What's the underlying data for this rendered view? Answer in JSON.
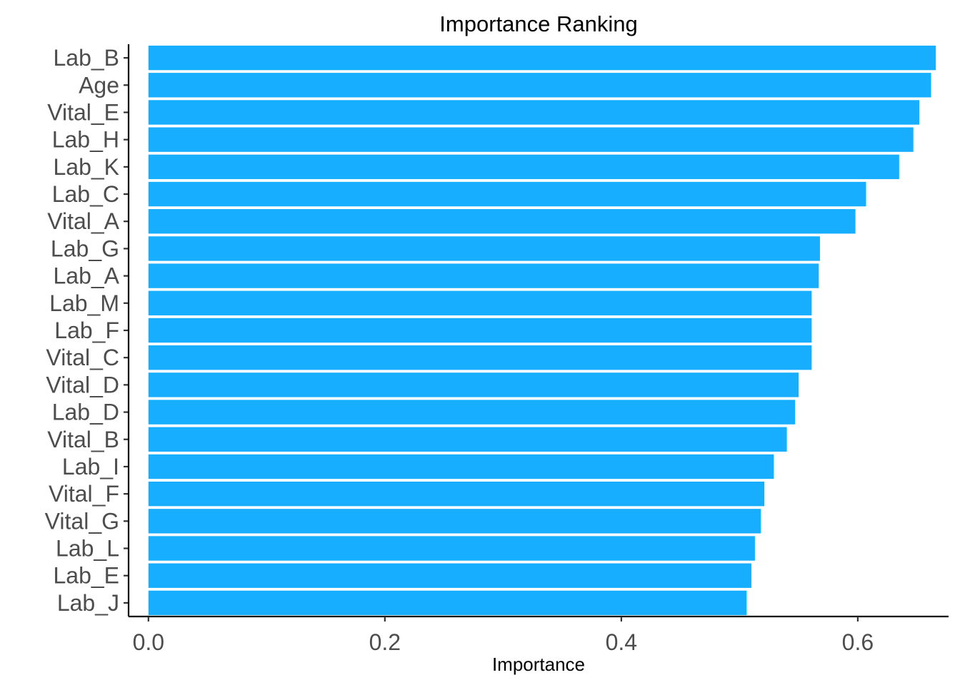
{
  "chart_data": {
    "type": "bar",
    "orientation": "horizontal",
    "title": "Importance Ranking",
    "xlabel": "Importance",
    "ylabel": "",
    "xlim": [
      -0.0168,
      0.6768
    ],
    "x_ticks": [
      {
        "value": 0.0,
        "label": "0.0"
      },
      {
        "value": 0.2,
        "label": "0.2"
      },
      {
        "value": 0.4,
        "label": "0.4"
      },
      {
        "value": 0.6,
        "label": "0.6"
      }
    ],
    "categories": [
      "Lab_B",
      "Age",
      "Vital_E",
      "Lab_H",
      "Lab_K",
      "Lab_C",
      "Vital_A",
      "Lab_G",
      "Lab_A",
      "Lab_M",
      "Lab_F",
      "Vital_C",
      "Vital_D",
      "Lab_D",
      "Vital_B",
      "Lab_I",
      "Vital_F",
      "Vital_G",
      "Lab_L",
      "Lab_E",
      "Lab_J"
    ],
    "values": [
      0.666,
      0.662,
      0.652,
      0.647,
      0.635,
      0.607,
      0.598,
      0.568,
      0.567,
      0.561,
      0.561,
      0.561,
      0.55,
      0.547,
      0.54,
      0.529,
      0.521,
      0.518,
      0.513,
      0.51,
      0.506
    ],
    "bar_color": "#18aeff",
    "grid": false,
    "legend": "none"
  }
}
